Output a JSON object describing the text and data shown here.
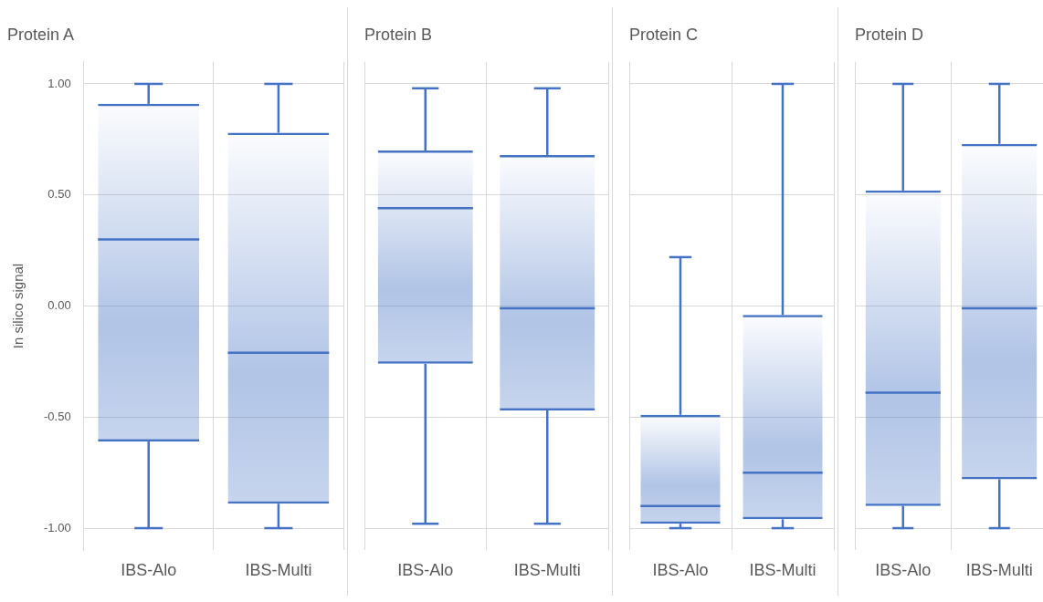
{
  "chart_data": [
    {
      "type": "box",
      "title": "Protein A",
      "ylabel": "In silico signal",
      "categories": [
        "IBS-Alo",
        "IBS-Multi"
      ],
      "color": "#4472c4",
      "ylim": [
        -1.1,
        1.1
      ],
      "yticks": [
        {
          "value": -1,
          "label": "-1.00"
        },
        {
          "value": -0.5,
          "label": "-0.50"
        },
        {
          "value": 0,
          "label": "0.00"
        },
        {
          "value": 0.5,
          "label": "0.50"
        },
        {
          "value": 1,
          "label": "1.00"
        }
      ],
      "grid": true,
      "boxes": [
        {
          "low": -1.0,
          "q1": -0.61,
          "median": 0.3,
          "q3": 0.91,
          "high": 1.0
        },
        {
          "low": -1.0,
          "q1": -0.89,
          "median": -0.21,
          "q3": 0.78,
          "high": 1.0
        }
      ]
    },
    {
      "type": "box",
      "title": "Protein B",
      "categories": [
        "IBS-Alo",
        "IBS-Multi"
      ],
      "color": "#4472c4",
      "ylim": [
        -1.1,
        1.1
      ],
      "yticks": [
        -1,
        -0.5,
        0,
        0.5,
        1
      ],
      "grid": true,
      "tick_labels": "x",
      "boxes": [
        {
          "low": -0.98,
          "q1": -0.26,
          "median": 0.44,
          "q3": 0.7,
          "high": 0.98
        },
        {
          "low": -0.98,
          "q1": -0.47,
          "median": -0.01,
          "q3": 0.68,
          "high": 0.98
        }
      ]
    },
    {
      "type": "box",
      "title": "Protein C",
      "categories": [
        "IBS-Alo",
        "IBS-Multi"
      ],
      "color": "#4472c4",
      "ylim": [
        -1.1,
        1.1
      ],
      "yticks": [
        -1,
        -0.5,
        0,
        0.5,
        1
      ],
      "grid": true,
      "tick_labels": "x",
      "boxes": [
        {
          "low": -1.0,
          "q1": -0.98,
          "median": -0.9,
          "q3": -0.49,
          "high": 0.22
        },
        {
          "low": -1.0,
          "q1": -0.96,
          "median": -0.75,
          "q3": -0.04,
          "high": 1.0
        }
      ]
    },
    {
      "type": "box",
      "title": "Protein D",
      "categories": [
        "IBS-Alo",
        "IBS-Multi"
      ],
      "color": "#4472c4",
      "ylim": [
        -1.1,
        1.1
      ],
      "yticks": [
        -1,
        -0.5,
        0,
        0.5,
        1
      ],
      "grid": true,
      "tick_labels": "x",
      "boxes": [
        {
          "low": -1.0,
          "q1": -0.9,
          "median": -0.39,
          "q3": 0.52,
          "high": 1.0
        },
        {
          "low": -1.0,
          "q1": -0.78,
          "median": -0.01,
          "q3": 0.73,
          "high": 1.0
        }
      ]
    }
  ]
}
